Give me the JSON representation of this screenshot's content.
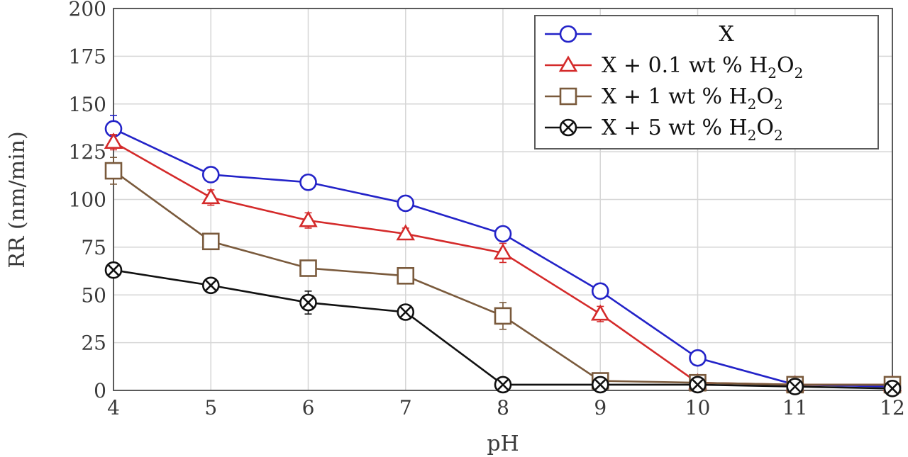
{
  "chart_data": {
    "type": "line",
    "title": "",
    "xlabel": "pH",
    "ylabel": "RR (nm/min)",
    "x": [
      4,
      5,
      6,
      7,
      8,
      9,
      10,
      11,
      12
    ],
    "xlim": [
      4,
      12
    ],
    "ylim": [
      0,
      200
    ],
    "xticks": [
      "4",
      "5",
      "6",
      "7",
      "8",
      "9",
      "10",
      "11",
      "12"
    ],
    "yticks": [
      "0",
      "25",
      "50",
      "75",
      "100",
      "125",
      "150",
      "175",
      "200"
    ],
    "grid": true,
    "legend_position": "top-right",
    "series": [
      {
        "name": "X",
        "parts": [
          "X"
        ],
        "color": "#2323c8",
        "marker": "circle",
        "values": [
          137,
          113,
          109,
          98,
          82,
          52,
          17,
          3,
          2
        ],
        "errors": [
          7,
          3,
          3,
          3,
          3,
          3,
          2,
          0,
          0
        ]
      },
      {
        "name": "X + 0.1 wt % H2O2",
        "parts": [
          "X + 0.1 wt % H",
          "2",
          "O",
          "2"
        ],
        "color": "#d42a2a",
        "marker": "triangle",
        "values": [
          130,
          101,
          89,
          82,
          72,
          40,
          4,
          3,
          3
        ],
        "errors": [
          4,
          4,
          4,
          3,
          5,
          4,
          0,
          0,
          0
        ]
      },
      {
        "name": "X + 1 wt % H2O2",
        "parts": [
          "X + 1 wt % H",
          "2",
          "O",
          "2"
        ],
        "color": "#7a5a3c",
        "marker": "square",
        "values": [
          115,
          78,
          64,
          60,
          39,
          5,
          4,
          3,
          3
        ],
        "errors": [
          7,
          3,
          3,
          3,
          7,
          0,
          0,
          0,
          0
        ]
      },
      {
        "name": "X + 5 wt % H2O2",
        "parts": [
          "X + 5 wt % H",
          "2",
          "O",
          "2"
        ],
        "color": "#111111",
        "marker": "circle-x",
        "values": [
          63,
          55,
          46,
          41,
          3,
          3,
          3,
          2,
          1
        ],
        "errors": [
          0,
          0,
          6,
          0,
          0,
          0,
          0,
          0,
          0
        ]
      }
    ]
  }
}
